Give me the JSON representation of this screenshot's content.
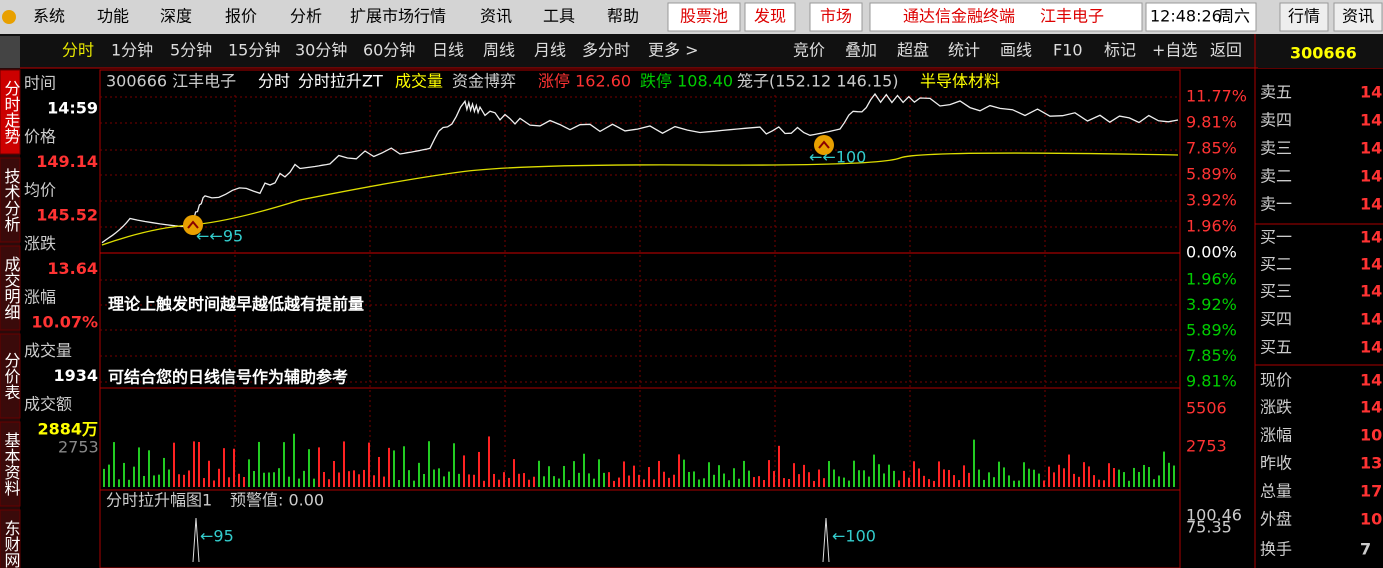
{
  "menu": [
    "系统",
    "功能",
    "深度",
    "报价",
    "分析",
    "扩展市场行情",
    "资讯",
    "工具",
    "帮助"
  ],
  "menu_buttons": [
    "股票池",
    "发现",
    "市场"
  ],
  "banner": {
    "title": "通达信金融终端",
    "stock": "江丰电子"
  },
  "clock": {
    "time": "12:48:26",
    "weekday": "周六"
  },
  "top_buttons": [
    "行情",
    "资讯"
  ],
  "periods": [
    "分时",
    "1分钟",
    "5分钟",
    "15分钟",
    "30分钟",
    "60分钟",
    "日线",
    "周线",
    "月线",
    "多分时",
    "更多 >"
  ],
  "tools": [
    "竞价",
    "叠加",
    "超盘",
    "统计",
    "画线",
    "F10",
    "标记",
    "+自选",
    "返回"
  ],
  "side_tabs": [
    "分时走势",
    "技术分析",
    "成交明细",
    "分价表",
    "基本资料",
    "东财网站"
  ],
  "info": [
    {
      "label": "时间",
      "value": "14:59"
    },
    {
      "label": "价格",
      "value": "149.14"
    },
    {
      "label": "均价",
      "value": "145.52"
    },
    {
      "label": "涨跌",
      "value": "13.64"
    },
    {
      "label": "涨幅",
      "value": "10.07%"
    },
    {
      "label": "成交量",
      "value": "1934"
    },
    {
      "label": "成交额",
      "value": "2884万"
    }
  ],
  "chart_header": [
    "300666 江丰电子",
    "分时",
    "分时拉升ZT",
    "成交量",
    "资金博弈",
    "涨停 162.60",
    "跌停 108.40",
    "笼子(152.12 146.15)",
    "半导体材料"
  ],
  "pct_axis_up": [
    "11.77%",
    "9.81%",
    "7.85%",
    "5.89%",
    "3.92%",
    "1.96%"
  ],
  "pct_axis_zero": "0.00%",
  "pct_axis_down": [
    "1.96%",
    "3.92%",
    "5.89%",
    "7.85%",
    "9.81%"
  ],
  "volume_axis": [
    "5506",
    "2753"
  ],
  "volume_left_label": "2753",
  "signals": [
    "←←95",
    "←←100"
  ],
  "indicator": {
    "name": "分时拉升幅图1",
    "alert": "预警值: 0.00",
    "signals": [
      "←95",
      "←100"
    ],
    "axis": [
      "100.46",
      "75.35"
    ]
  },
  "caption": [
    "理论上触发时间越早越低越有提前量",
    "可结合您的日线信号作为辅助参考"
  ],
  "quote_panel": {
    "code": "300666",
    "rows": [
      {
        "label": "卖五",
        "value": "14"
      },
      {
        "label": "卖四",
        "value": "14"
      },
      {
        "label": "卖三",
        "value": "14"
      },
      {
        "label": "卖二",
        "value": "14"
      },
      {
        "label": "卖一",
        "value": "14"
      },
      {
        "label": "买一",
        "value": "14"
      },
      {
        "label": "买二",
        "value": "14"
      },
      {
        "label": "买三",
        "value": "14"
      },
      {
        "label": "买四",
        "value": "14"
      },
      {
        "label": "买五",
        "value": "14"
      },
      {
        "label": "现价",
        "value": "14"
      },
      {
        "label": "涨跌",
        "value": "14"
      },
      {
        "label": "涨幅",
        "value": "10"
      },
      {
        "label": "昨收",
        "value": "13"
      },
      {
        "label": "总量",
        "value": "17"
      },
      {
        "label": "外盘",
        "value": "10"
      },
      {
        "label": "换手",
        "value": "7"
      }
    ]
  }
}
